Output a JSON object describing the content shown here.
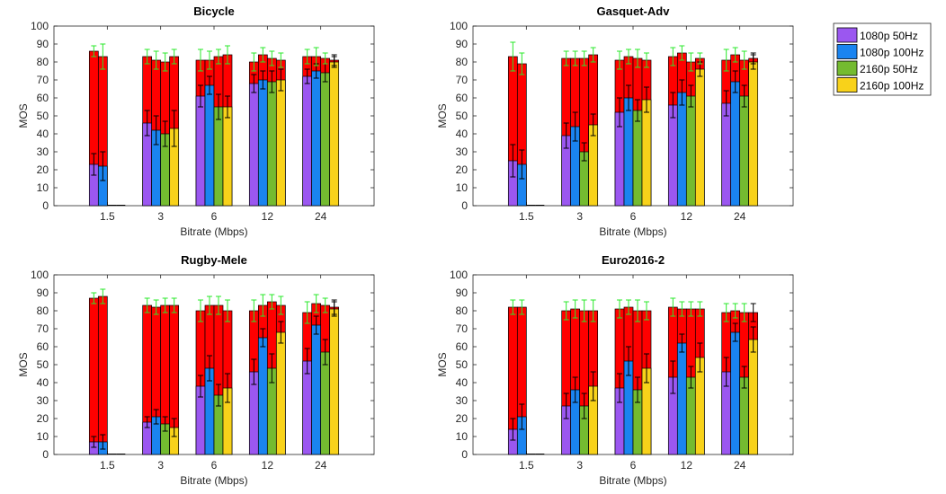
{
  "chart_data": [
    {
      "type": "bar",
      "title": "Bicycle",
      "xlabel": "Bitrate (Mbps)",
      "ylabel": "MOS",
      "ylim": [
        0,
        100
      ],
      "yticks": [
        0,
        10,
        20,
        30,
        40,
        50,
        60,
        70,
        80,
        90,
        100
      ],
      "categories": [
        "1.5",
        "3",
        "6",
        "12",
        "24"
      ],
      "series": [
        {
          "name": "1080p 50Hz",
          "bottom": [
            23,
            46,
            61,
            68,
            72
          ],
          "bottom_err": [
            6,
            7,
            6,
            5,
            4
          ],
          "top": [
            86,
            83,
            81,
            80,
            83
          ],
          "top_err": [
            3,
            4,
            6,
            5,
            4
          ]
        },
        {
          "name": "1080p 100Hz",
          "bottom": [
            22,
            42,
            67,
            70,
            75
          ],
          "bottom_err": [
            8,
            8,
            5,
            5,
            4
          ],
          "top": [
            83,
            81,
            81,
            84,
            83
          ],
          "top_err": [
            7,
            5,
            5,
            4,
            5
          ]
        },
        {
          "name": "2160p 50Hz",
          "bottom": [
            null,
            40,
            55,
            69,
            74
          ],
          "bottom_err": [
            null,
            7,
            7,
            6,
            5
          ],
          "top": [
            null,
            80,
            83,
            82,
            82
          ],
          "top_err": [
            null,
            5,
            4,
            4,
            3
          ]
        },
        {
          "name": "2160p 100Hz",
          "bottom": [
            null,
            43,
            55,
            70,
            80
          ],
          "bottom_err": [
            null,
            10,
            6,
            6,
            3
          ],
          "top": [
            null,
            83,
            84,
            81,
            81
          ],
          "top_err": [
            null,
            4,
            5,
            4,
            3
          ]
        }
      ]
    },
    {
      "type": "bar",
      "title": "Gasquet-Adv",
      "xlabel": "Bitrate (Mbps)",
      "ylabel": "MOS",
      "ylim": [
        0,
        100
      ],
      "yticks": [
        0,
        10,
        20,
        30,
        40,
        50,
        60,
        70,
        80,
        90,
        100
      ],
      "categories": [
        "1.5",
        "3",
        "6",
        "12",
        "24"
      ],
      "series": [
        {
          "name": "1080p 50Hz",
          "bottom": [
            25,
            39,
            52,
            56,
            57
          ],
          "bottom_err": [
            9,
            7,
            8,
            7,
            7
          ],
          "top": [
            83,
            82,
            81,
            83,
            81
          ],
          "top_err": [
            8,
            4,
            5,
            5,
            6
          ]
        },
        {
          "name": "1080p 100Hz",
          "bottom": [
            23,
            44,
            60,
            63,
            69
          ],
          "bottom_err": [
            8,
            8,
            7,
            7,
            6
          ],
          "top": [
            79,
            82,
            83,
            85,
            84
          ],
          "top_err": [
            6,
            4,
            4,
            4,
            4
          ]
        },
        {
          "name": "2160p 50Hz",
          "bottom": [
            null,
            30,
            53,
            61,
            61
          ],
          "bottom_err": [
            null,
            5,
            6,
            6,
            6
          ],
          "top": [
            null,
            82,
            82,
            80,
            81
          ],
          "top_err": [
            null,
            4,
            5,
            5,
            5
          ]
        },
        {
          "name": "2160p 100Hz",
          "bottom": [
            null,
            45,
            59,
            76,
            80
          ],
          "bottom_err": [
            null,
            6,
            7,
            4,
            4
          ],
          "top": [
            null,
            84,
            81,
            82,
            82
          ],
          "top_err": [
            null,
            4,
            4,
            3,
            3
          ]
        }
      ]
    },
    {
      "type": "bar",
      "title": "Rugby-Mele",
      "xlabel": "Bitrate (Mbps)",
      "ylabel": "MOS",
      "ylim": [
        0,
        100
      ],
      "yticks": [
        0,
        10,
        20,
        30,
        40,
        50,
        60,
        70,
        80,
        90,
        100
      ],
      "categories": [
        "1.5",
        "3",
        "6",
        "12",
        "24"
      ],
      "series": [
        {
          "name": "1080p 50Hz",
          "bottom": [
            7,
            18,
            38,
            46,
            52
          ],
          "bottom_err": [
            3,
            3,
            6,
            7,
            7
          ],
          "top": [
            87,
            83,
            80,
            80,
            79
          ],
          "top_err": [
            3,
            4,
            6,
            6,
            6
          ]
        },
        {
          "name": "1080p 100Hz",
          "bottom": [
            7,
            21,
            48,
            65,
            72
          ],
          "bottom_err": [
            4,
            4,
            7,
            5,
            5
          ],
          "top": [
            88,
            82,
            83,
            83,
            84
          ],
          "top_err": [
            4,
            4,
            5,
            6,
            5
          ]
        },
        {
          "name": "2160p 50Hz",
          "bottom": [
            null,
            17,
            33,
            48,
            57
          ],
          "bottom_err": [
            null,
            4,
            6,
            8,
            7
          ],
          "top": [
            null,
            83,
            83,
            85,
            83
          ],
          "top_err": [
            null,
            4,
            5,
            4,
            4
          ]
        },
        {
          "name": "2160p 100Hz",
          "bottom": [
            null,
            15,
            37,
            68,
            81
          ],
          "bottom_err": [
            null,
            5,
            8,
            6,
            4
          ],
          "top": [
            null,
            83,
            80,
            83,
            82
          ],
          "top_err": [
            null,
            4,
            6,
            5,
            4
          ]
        }
      ]
    },
    {
      "type": "bar",
      "title": "Euro2016-2",
      "xlabel": "Bitrate (Mbps)",
      "ylabel": "MOS",
      "ylim": [
        0,
        100
      ],
      "yticks": [
        0,
        10,
        20,
        30,
        40,
        50,
        60,
        70,
        80,
        90,
        100
      ],
      "categories": [
        "1.5",
        "3",
        "6",
        "12",
        "24"
      ],
      "series": [
        {
          "name": "1080p 50Hz",
          "bottom": [
            14,
            27,
            37,
            43,
            46
          ],
          "bottom_err": [
            6,
            7,
            8,
            9,
            8
          ],
          "top": [
            82,
            80,
            81,
            82,
            79
          ],
          "top_err": [
            4,
            5,
            5,
            5,
            5
          ]
        },
        {
          "name": "1080p 100Hz",
          "bottom": [
            21,
            36,
            52,
            62,
            68
          ],
          "bottom_err": [
            7,
            7,
            8,
            5,
            5
          ],
          "top": [
            82,
            81,
            82,
            81,
            80
          ],
          "top_err": [
            4,
            5,
            4,
            4,
            4
          ]
        },
        {
          "name": "2160p 50Hz",
          "bottom": [
            null,
            27,
            36,
            43,
            43
          ],
          "bottom_err": [
            null,
            7,
            7,
            6,
            6
          ],
          "top": [
            null,
            80,
            80,
            81,
            79
          ],
          "top_err": [
            null,
            6,
            6,
            4,
            5
          ]
        },
        {
          "name": "2160p 100Hz",
          "bottom": [
            null,
            38,
            48,
            54,
            64
          ],
          "bottom_err": [
            null,
            8,
            8,
            8,
            7
          ],
          "top": [
            null,
            80,
            80,
            81,
            79
          ],
          "top_err": [
            null,
            6,
            5,
            4,
            5
          ]
        }
      ]
    }
  ],
  "legend": {
    "placement": "top-right",
    "entries": [
      "1080p 50Hz",
      "1080p 100Hz",
      "2160p 50Hz",
      "2160p 100Hz"
    ]
  },
  "colors": {
    "1080p 50Hz": "#9b57f0",
    "1080p 100Hz": "#1a84f0",
    "2160p 50Hz": "#74bb30",
    "2160p 100Hz": "#f8d21a",
    "upper_bar": "#ff0000",
    "upper_error": "#29e82a",
    "lower_error": "#000000"
  }
}
